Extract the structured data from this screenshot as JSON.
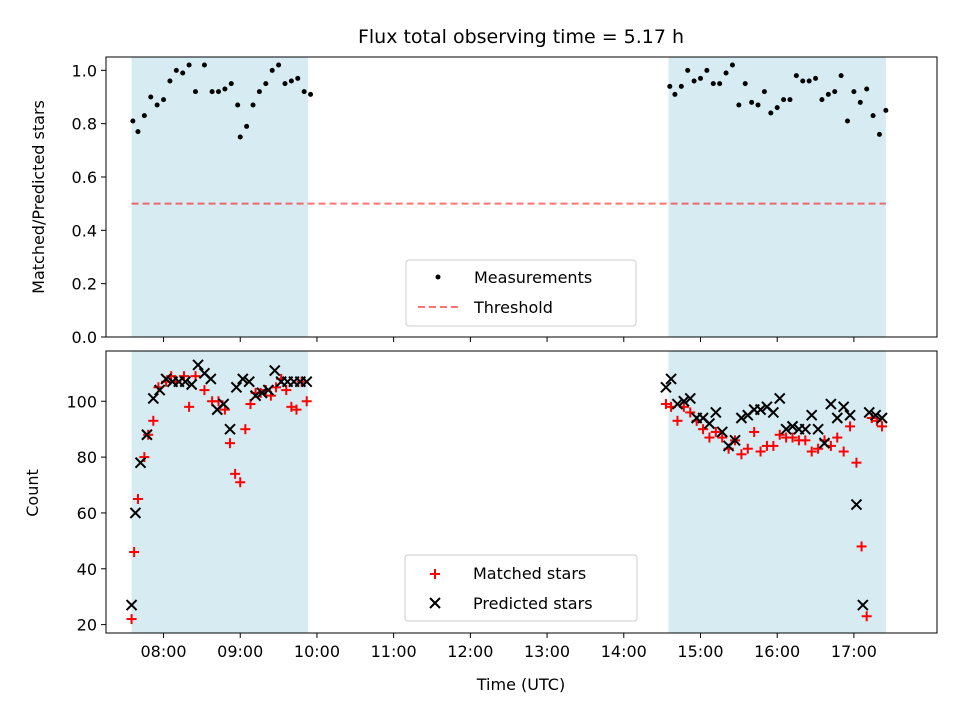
{
  "colors": {
    "observing_window": "#add8e6",
    "measurement_marker": "#000000",
    "threshold_line": "#ff0000",
    "matched_marker": "#ff0000",
    "predicted_marker": "#000000"
  },
  "chart_data": [
    {
      "type": "scatter",
      "title": "Flux total observing time = 5.17 h",
      "xlabel": "",
      "ylabel": "Matched/Predicted stars",
      "xlim": [
        "07:15",
        "18:05"
      ],
      "ylim": [
        0,
        1.05
      ],
      "yticks": [
        "0.0",
        "0.2",
        "0.4",
        "0.6",
        "0.8",
        "1.0"
      ],
      "shaded_intervals": [
        [
          "07:35",
          "09:53"
        ],
        [
          "14:35",
          "17:25"
        ]
      ],
      "threshold": 0.5,
      "legend_position": "lower center",
      "legend": [
        "Measurements",
        "Threshold"
      ],
      "series": [
        {
          "name": "Measurements",
          "marker": "dot",
          "x": [
            "07:36",
            "07:40",
            "07:45",
            "07:50",
            "07:55",
            "08:00",
            "08:05",
            "08:10",
            "08:15",
            "08:20",
            "08:25",
            "08:32",
            "08:38",
            "08:43",
            "08:48",
            "08:53",
            "08:58",
            "09:00",
            "09:05",
            "09:10",
            "09:15",
            "09:20",
            "09:25",
            "09:30",
            "09:35",
            "09:40",
            "09:45",
            "09:50",
            "09:55",
            "14:36",
            "14:40",
            "14:45",
            "14:50",
            "14:55",
            "15:00",
            "15:05",
            "15:10",
            "15:15",
            "15:20",
            "15:25",
            "15:30",
            "15:35",
            "15:40",
            "15:45",
            "15:50",
            "15:55",
            "16:00",
            "16:05",
            "16:10",
            "16:15",
            "16:20",
            "16:25",
            "16:30",
            "16:35",
            "16:40",
            "16:45",
            "16:50",
            "16:55",
            "17:00",
            "17:05",
            "17:10",
            "17:15",
            "17:20",
            "17:25"
          ],
          "y": [
            0.81,
            0.77,
            0.83,
            0.9,
            0.87,
            0.89,
            0.96,
            1.0,
            0.99,
            1.02,
            0.92,
            1.02,
            0.92,
            0.92,
            0.93,
            0.95,
            0.87,
            0.75,
            0.79,
            0.87,
            0.92,
            0.95,
            1.0,
            1.02,
            0.95,
            0.96,
            0.97,
            0.92,
            0.91,
            0.94,
            0.91,
            0.94,
            1.0,
            0.96,
            0.97,
            1.0,
            0.95,
            0.95,
            0.99,
            1.02,
            0.87,
            0.95,
            0.88,
            0.87,
            0.92,
            0.84,
            0.86,
            0.89,
            0.89,
            0.98,
            0.96,
            0.96,
            0.97,
            0.89,
            0.91,
            0.92,
            0.98,
            0.81,
            0.92,
            0.88,
            0.93,
            0.83,
            0.76,
            0.85
          ]
        },
        {
          "name": "Threshold",
          "marker": "dashed",
          "x": [
            "07:35",
            "17:25"
          ],
          "y": [
            0.5,
            0.5
          ]
        }
      ]
    },
    {
      "type": "scatter",
      "xlabel": "Time (UTC)",
      "ylabel": "Count",
      "xlim": [
        "07:15",
        "18:05"
      ],
      "ylim": [
        17,
        118
      ],
      "xticks": [
        "08:00",
        "09:00",
        "10:00",
        "11:00",
        "12:00",
        "13:00",
        "14:00",
        "15:00",
        "16:00",
        "17:00"
      ],
      "yticks": [
        "20",
        "40",
        "60",
        "80",
        "100"
      ],
      "shaded_intervals": [
        [
          "07:35",
          "09:53"
        ],
        [
          "14:35",
          "17:25"
        ]
      ],
      "legend_position": "lower center",
      "legend": [
        "Matched stars",
        "Predicted stars"
      ],
      "series": [
        {
          "name": "Matched stars",
          "marker": "plus",
          "x": [
            "07:35",
            "07:37",
            "07:40",
            "07:45",
            "07:48",
            "07:52",
            "07:56",
            "08:02",
            "08:06",
            "08:10",
            "08:16",
            "08:20",
            "08:25",
            "08:32",
            "08:38",
            "08:43",
            "08:48",
            "08:52",
            "08:56",
            "09:00",
            "09:04",
            "09:08",
            "09:12",
            "09:16",
            "09:20",
            "09:24",
            "09:28",
            "09:32",
            "09:36",
            "09:40",
            "09:44",
            "09:48",
            "09:52",
            "14:33",
            "14:37",
            "14:42",
            "14:47",
            "14:52",
            "14:57",
            "15:02",
            "15:07",
            "15:12",
            "15:17",
            "15:22",
            "15:27",
            "15:32",
            "15:37",
            "15:42",
            "15:47",
            "15:52",
            "15:57",
            "16:02",
            "16:07",
            "16:12",
            "16:17",
            "16:22",
            "16:27",
            "16:32",
            "16:37",
            "16:42",
            "16:47",
            "16:52",
            "16:57",
            "17:02",
            "17:06",
            "17:10",
            "17:14",
            "17:18",
            "17:22"
          ],
          "y": [
            22,
            46,
            65,
            80,
            88,
            93,
            105,
            107,
            109,
            107,
            109,
            98,
            109,
            104,
            100,
            100,
            97,
            85,
            74,
            71,
            90,
            99,
            103,
            103,
            104,
            102,
            105,
            108,
            104,
            98,
            97,
            107,
            100,
            99,
            98,
            93,
            98,
            96,
            93,
            90,
            87,
            89,
            87,
            83,
            86,
            81,
            83,
            89,
            82,
            84,
            84,
            88,
            87,
            87,
            86,
            86,
            82,
            83,
            86,
            84,
            87,
            82,
            91,
            78,
            48,
            23,
            94,
            93,
            91
          ]
        },
        {
          "name": "Predicted stars",
          "marker": "cross",
          "x": [
            "07:35",
            "07:38",
            "07:42",
            "07:47",
            "07:52",
            "07:57",
            "08:02",
            "08:07",
            "08:12",
            "08:17",
            "08:22",
            "08:27",
            "08:32",
            "08:37",
            "08:42",
            "08:47",
            "08:52",
            "08:57",
            "09:02",
            "09:07",
            "09:12",
            "09:17",
            "09:22",
            "09:27",
            "09:32",
            "09:37",
            "09:42",
            "09:47",
            "09:52",
            "14:33",
            "14:37",
            "14:42",
            "14:47",
            "14:52",
            "14:57",
            "15:02",
            "15:07",
            "15:12",
            "15:17",
            "15:22",
            "15:27",
            "15:32",
            "15:37",
            "15:42",
            "15:47",
            "15:52",
            "15:57",
            "16:02",
            "16:07",
            "16:12",
            "16:17",
            "16:22",
            "16:27",
            "16:32",
            "16:37",
            "16:42",
            "16:47",
            "16:52",
            "16:57",
            "17:02",
            "17:07",
            "17:12",
            "17:17",
            "17:22"
          ],
          "y": [
            27,
            60,
            78,
            88,
            101,
            104,
            108,
            107,
            107,
            107,
            106,
            113,
            110,
            108,
            97,
            99,
            90,
            105,
            108,
            107,
            102,
            103,
            104,
            111,
            107,
            107,
            107,
            107,
            107,
            105,
            108,
            99,
            100,
            101,
            94,
            94,
            92,
            96,
            89,
            84,
            86,
            94,
            95,
            97,
            97,
            98,
            96,
            101,
            90,
            91,
            90,
            90,
            95,
            90,
            85,
            99,
            94,
            98,
            95,
            63,
            27,
            96,
            95,
            94
          ]
        }
      ]
    }
  ]
}
